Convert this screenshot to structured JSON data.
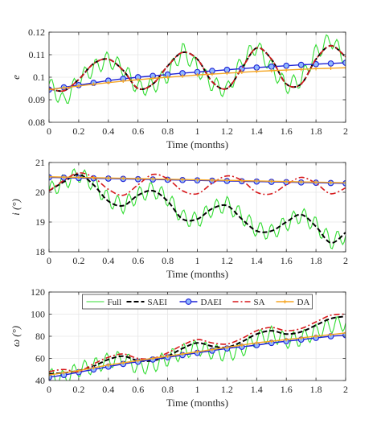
{
  "colors": {
    "full": "#33dd33",
    "saei": "#000000",
    "daei": "#1f22d6",
    "sa": "#d7191c",
    "da": "#f5a623",
    "daei_marker_fill": "#8fb8ff",
    "grid": "#e6e6e6",
    "axis": "#262626"
  },
  "chart_data": [
    {
      "type": "line",
      "title": "",
      "xlabel": "Time (months)",
      "ylabel": "e",
      "xlim": [
        0,
        2
      ],
      "ylim": [
        0.08,
        0.12
      ],
      "xticks": [
        0,
        0.2,
        0.4,
        0.6,
        0.8,
        1,
        1.2,
        1.4,
        1.6,
        1.8,
        2
      ],
      "xtick_labels": [
        "0",
        "0.2",
        "0.4",
        "0.6",
        "0.8",
        "1",
        "1.2",
        "1.4",
        "1.6",
        "1.8",
        "2"
      ],
      "yticks": [
        0.08,
        0.09,
        0.1,
        0.11,
        0.12
      ],
      "ytick_labels": [
        "0.08",
        "0.09",
        "0.1",
        "0.11",
        "0.12"
      ],
      "grid": true,
      "x": [
        0,
        0.1,
        0.2,
        0.3,
        0.4,
        0.5,
        0.6,
        0.7,
        0.8,
        0.9,
        1.0,
        1.1,
        1.2,
        1.3,
        1.4,
        1.5,
        1.6,
        1.7,
        1.8,
        1.9,
        2.0
      ],
      "series": [
        {
          "name": "Full",
          "values": [
            0.097,
            0.089,
            0.099,
            0.104,
            0.108,
            0.104,
            0.095,
            0.096,
            0.101,
            0.112,
            0.104,
            0.097,
            0.094,
            0.107,
            0.114,
            0.104,
            0.096,
            0.099,
            0.111,
            0.117,
            0.108
          ]
        },
        {
          "name": "SAEI",
          "values": [
            0.095,
            0.094,
            0.099,
            0.106,
            0.108,
            0.103,
            0.095,
            0.097,
            0.105,
            0.111,
            0.108,
            0.098,
            0.095,
            0.104,
            0.113,
            0.108,
            0.097,
            0.097,
            0.108,
            0.114,
            0.109
          ]
        },
        {
          "name": "DAEI",
          "values": [
            0.0945,
            0.0955,
            0.0965,
            0.0975,
            0.0985,
            0.0993,
            0.1,
            0.1006,
            0.1012,
            0.1018,
            0.1023,
            0.1028,
            0.1033,
            0.1038,
            0.1043,
            0.1047,
            0.1051,
            0.1055,
            0.1058,
            0.1061,
            0.1064
          ]
        },
        {
          "name": "SA",
          "values": [
            0.095,
            0.094,
            0.099,
            0.106,
            0.108,
            0.103,
            0.095,
            0.097,
            0.105,
            0.111,
            0.108,
            0.098,
            0.095,
            0.104,
            0.113,
            0.108,
            0.097,
            0.097,
            0.108,
            0.114,
            0.109
          ]
        },
        {
          "name": "DA",
          "values": [
            0.0945,
            0.0953,
            0.0961,
            0.0969,
            0.0976,
            0.0983,
            0.0989,
            0.0995,
            0.1,
            0.1005,
            0.101,
            0.1014,
            0.1018,
            0.1022,
            0.1026,
            0.1029,
            0.1032,
            0.1035,
            0.1038,
            0.104,
            0.1042
          ]
        }
      ]
    },
    {
      "type": "line",
      "title": "",
      "xlabel": "Time (months)",
      "ylabel": "i (°)",
      "xlim": [
        0,
        2
      ],
      "ylim": [
        18,
        21
      ],
      "xticks": [
        0,
        0.2,
        0.4,
        0.6,
        0.8,
        1,
        1.2,
        1.4,
        1.6,
        1.8,
        2
      ],
      "xtick_labels": [
        "0",
        "0.2",
        "0.4",
        "0.6",
        "0.8",
        "1",
        "1.2",
        "1.4",
        "1.6",
        "1.8",
        "2"
      ],
      "yticks": [
        18,
        19,
        20,
        21
      ],
      "ytick_labels": [
        "18",
        "19",
        "20",
        "21"
      ],
      "grid": true,
      "x": [
        0,
        0.1,
        0.2,
        0.3,
        0.4,
        0.5,
        0.6,
        0.7,
        0.8,
        0.9,
        1.0,
        1.1,
        1.2,
        1.3,
        1.4,
        1.5,
        1.6,
        1.7,
        1.8,
        1.9,
        2.0
      ],
      "series": [
        {
          "name": "Full",
          "values": [
            20.05,
            20.35,
            20.6,
            20.3,
            19.75,
            19.55,
            19.9,
            20.1,
            19.8,
            19.15,
            19.05,
            19.45,
            19.6,
            19.2,
            18.75,
            18.65,
            18.95,
            19.25,
            18.9,
            18.35,
            18.55
          ]
        },
        {
          "name": "SAEI",
          "values": [
            20.05,
            20.35,
            20.6,
            20.25,
            19.7,
            19.55,
            19.9,
            20.05,
            19.7,
            19.1,
            19.1,
            19.45,
            19.55,
            19.1,
            18.7,
            18.7,
            19.0,
            19.25,
            18.85,
            18.3,
            18.65
          ]
        },
        {
          "name": "DAEI",
          "values": [
            20.5,
            20.49,
            20.48,
            20.47,
            20.46,
            20.45,
            20.44,
            20.43,
            20.42,
            20.41,
            20.4,
            20.39,
            20.38,
            20.37,
            20.36,
            20.35,
            20.34,
            20.33,
            20.32,
            20.31,
            20.3
          ]
        },
        {
          "name": "SA",
          "values": [
            20.05,
            20.4,
            20.65,
            20.5,
            20.1,
            19.9,
            20.25,
            20.6,
            20.45,
            20.05,
            19.95,
            20.3,
            20.55,
            20.4,
            20.0,
            19.95,
            20.25,
            20.5,
            20.3,
            19.95,
            20.15
          ]
        },
        {
          "name": "DA",
          "values": [
            20.52,
            20.51,
            20.5,
            20.49,
            20.48,
            20.47,
            20.46,
            20.45,
            20.44,
            20.43,
            20.42,
            20.41,
            20.4,
            20.39,
            20.38,
            20.37,
            20.36,
            20.35,
            20.34,
            20.33,
            20.32
          ]
        }
      ]
    },
    {
      "type": "line",
      "title": "",
      "xlabel": "Time (months)",
      "ylabel": "ω (°)",
      "xlim": [
        0,
        2
      ],
      "ylim": [
        40,
        120
      ],
      "xticks": [
        0,
        0.2,
        0.4,
        0.6,
        0.8,
        1,
        1.2,
        1.4,
        1.6,
        1.8,
        2
      ],
      "xtick_labels": [
        "0",
        "0.2",
        "0.4",
        "0.6",
        "0.8",
        "1",
        "1.2",
        "1.4",
        "1.6",
        "1.8",
        "2"
      ],
      "yticks": [
        40,
        60,
        80,
        100,
        120
      ],
      "ytick_labels": [
        "40",
        "60",
        "80",
        "100",
        "120"
      ],
      "grid": true,
      "legend": {
        "placement": "top",
        "orientation": "horizontal",
        "entries": [
          "Full",
          "SAEI",
          "DAEI",
          "SA",
          "DA"
        ]
      },
      "x": [
        0,
        0.1,
        0.2,
        0.3,
        0.4,
        0.5,
        0.6,
        0.7,
        0.8,
        0.9,
        1.0,
        1.1,
        1.2,
        1.3,
        1.4,
        1.5,
        1.6,
        1.7,
        1.8,
        1.9,
        2.0
      ],
      "series": [
        {
          "name": "Full",
          "values": [
            44,
            42,
            50,
            53,
            58,
            60,
            52,
            54,
            60,
            66,
            70,
            66,
            64,
            68,
            78,
            82,
            76,
            78,
            84,
            90,
            92
          ]
        },
        {
          "name": "SAEI",
          "values": [
            46,
            47,
            49,
            53,
            59,
            62,
            58,
            58,
            62,
            69,
            74,
            71,
            70,
            75,
            82,
            85,
            82,
            84,
            90,
            96,
            98
          ]
        },
        {
          "name": "DAEI",
          "values": [
            43,
            45,
            47.5,
            50,
            52.5,
            55,
            57,
            59,
            61,
            63,
            65,
            67,
            69,
            70.5,
            72,
            74,
            75.5,
            77,
            78.5,
            80,
            81
          ]
        },
        {
          "name": "SA",
          "values": [
            48,
            50,
            48,
            55,
            61,
            64,
            60,
            60,
            65,
            72,
            77,
            74,
            73,
            78,
            85,
            88,
            85,
            87,
            93,
            99,
            100
          ]
        },
        {
          "name": "DA",
          "values": [
            45,
            47,
            49,
            51.5,
            54,
            56,
            58,
            60,
            62,
            64,
            66,
            68,
            70,
            72,
            74,
            75.5,
            77,
            78.5,
            80,
            81.5,
            83
          ]
        }
      ]
    }
  ]
}
